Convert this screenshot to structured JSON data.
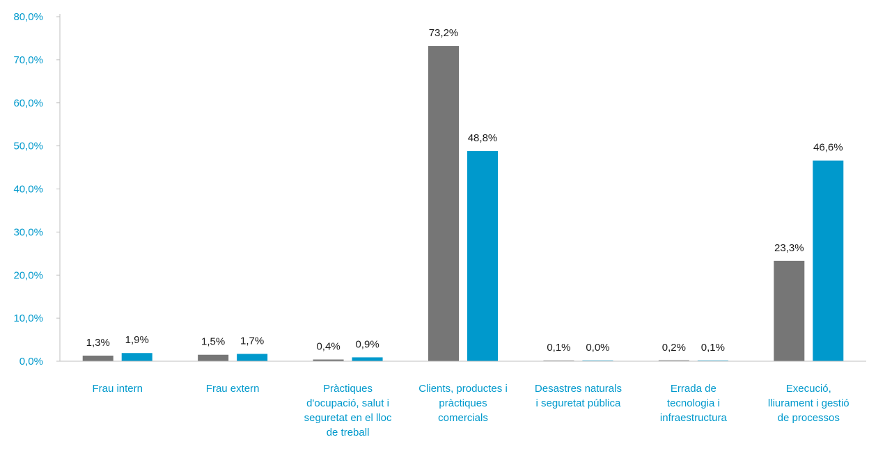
{
  "colors": {
    "series1": "#767676",
    "series2": "#0099cc",
    "axis_text": "#0099cc",
    "axis_line": "#bfbfbf",
    "data_label": "#1a1a1a"
  },
  "chart_data": {
    "type": "bar",
    "title": "",
    "xlabel": "",
    "ylabel": "",
    "ylim": [
      0,
      80
    ],
    "y_ticks": [
      "0,0%",
      "10,0%",
      "20,0%",
      "30,0%",
      "40,0%",
      "50,0%",
      "60,0%",
      "70,0%",
      "80,0%"
    ],
    "y_tick_values": [
      0,
      10,
      20,
      30,
      40,
      50,
      60,
      70,
      80
    ],
    "grid": false,
    "legend": "none",
    "categories": [
      [
        "Frau intern"
      ],
      [
        "Frau extern"
      ],
      [
        "Pràctiques",
        "d'ocupació, salut i",
        "seguretat en el lloc",
        "de treball"
      ],
      [
        "Clients, productes i",
        "pràctiques",
        "comercials"
      ],
      [
        "Desastres naturals",
        "i seguretat pública"
      ],
      [
        "Errada de",
        "tecnologia i",
        "infraestructura"
      ],
      [
        "Execució,",
        "lliurament i gestió",
        "de processos"
      ]
    ],
    "series": [
      {
        "values": [
          1.3,
          1.5,
          0.4,
          73.2,
          0.1,
          0.2,
          23.3
        ],
        "labels": [
          "1,3%",
          "1,5%",
          "0,4%",
          "73,2%",
          "0,1%",
          "0,2%",
          "23,3%"
        ]
      },
      {
        "values": [
          1.9,
          1.7,
          0.9,
          48.8,
          0.0,
          0.1,
          46.6
        ],
        "labels": [
          "1,9%",
          "1,7%",
          "0,9%",
          "48,8%",
          "0,0%",
          "0,1%",
          "46,6%"
        ]
      }
    ]
  }
}
